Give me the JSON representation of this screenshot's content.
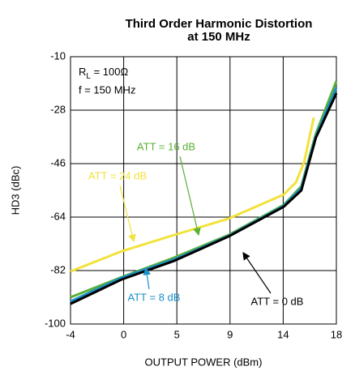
{
  "chart_data": {
    "type": "line",
    "title": [
      "Third Order Harmonic Distortion",
      "at 150 MHz"
    ],
    "x_label": "OUTPUT POWER (dBm)",
    "y_label": "HD3  (dBc)",
    "xlim": [
      -4,
      18
    ],
    "xticks": [
      -4,
      {
        "value": 0.4,
        "label": "0"
      },
      {
        "value": 4.8,
        "label": "5"
      },
      {
        "value": 9.2,
        "label": "9"
      },
      {
        "value": 13.6,
        "label": "14"
      },
      18
    ],
    "ylim": [
      -100,
      -10
    ],
    "yticks": [
      -10,
      -28,
      -46,
      -64,
      -82,
      -100
    ],
    "grid": true,
    "conditions": {
      "r": "R",
      "r_sub": "L",
      "r_rest": " = 100Ω",
      "f": "f = 150 MHz"
    },
    "series": [
      {
        "name": "ATT = 24 dB",
        "color": "#f2e23a",
        "x": [
          -4,
          0.23,
          4.6,
          9.1,
          13.65,
          14.66,
          15.33,
          16.13
        ],
        "values": [
          -82.3,
          -75.5,
          -70,
          -64.5,
          -56.4,
          -52.3,
          -45.5,
          -30.5
        ]
      },
      {
        "name": "ATT = 16 dB",
        "color": "#5ab034",
        "x": [
          -4,
          0.23,
          4.6,
          9.1,
          13.65,
          15.1,
          16.3,
          18
        ],
        "values": [
          -91,
          -84.2,
          -77.6,
          -70,
          -59.9,
          -53.6,
          -35.9,
          -18.2
        ]
      },
      {
        "name": "ATT = 8 dB",
        "color": "#1a8fc9",
        "x": [
          -4,
          0.23,
          4.6,
          9.1,
          13.65,
          15.1,
          16.3,
          18
        ],
        "values": [
          -92.4,
          -84.4,
          -78.2,
          -70.3,
          -60.2,
          -54.2,
          -36.7,
          -20.4
        ]
      },
      {
        "name": "ATT = 0 dB",
        "color": "#000000",
        "x": [
          -4,
          0.23,
          4.6,
          9.1,
          13.65,
          15.1,
          16.3,
          18
        ],
        "values": [
          -93.2,
          -85,
          -78.7,
          -70.5,
          -60.5,
          -55,
          -37.3,
          -22.3
        ]
      }
    ]
  }
}
